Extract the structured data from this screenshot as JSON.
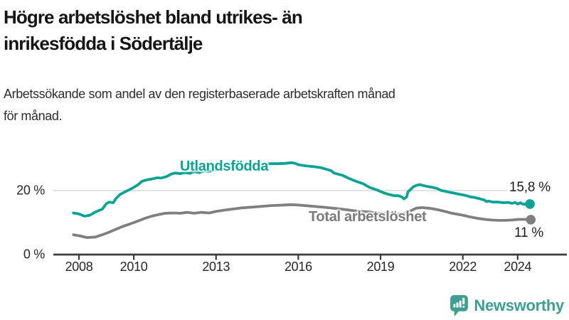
{
  "title": {
    "line1": "Högre arbetslöshet bland utrikes- än",
    "line2": "inrikesfödda i Södertälje"
  },
  "subtitle": {
    "line1": "Arbetssökande som andel av den registerbaserade arbetskraften månad",
    "line2": "för månad."
  },
  "branding": {
    "name": "Newsworthy",
    "icon": "bar-chart-speech-bubble-icon",
    "color": "#3d9f92"
  },
  "chart_data": {
    "type": "line",
    "title": "Högre arbetslöshet bland utrikes- än inrikesfödda i Södertälje",
    "subtitle": "Arbetssökande som andel av den registerbaserade arbetskraften månad för månad.",
    "unit": "%",
    "xlabel": "",
    "ylabel": "",
    "ylim": [
      0,
      33
    ],
    "x_range": [
      2007.8,
      2024.5
    ],
    "grid": "single horizontal gridline at 20 %",
    "legend_position": "inline labels on lines, end values at right",
    "style": {
      "grid_color": "#d9d9d9",
      "axis_color": "#3c3c3c"
    },
    "y_ticks": [
      {
        "value": 0,
        "label": "0 %"
      },
      {
        "value": 20,
        "label": "20 %"
      }
    ],
    "x_ticks": [
      {
        "year": 2008,
        "label": "2008"
      },
      {
        "year": 2010,
        "label": "2010"
      },
      {
        "year": 2013,
        "label": "2013"
      },
      {
        "year": 2016,
        "label": "2016"
      },
      {
        "year": 2019,
        "label": "2019"
      },
      {
        "year": 2022,
        "label": "2022"
      },
      {
        "year": 2024,
        "label": "2024"
      }
    ],
    "series": [
      {
        "id": "utlandsfodda",
        "name": "Utlandsfödda",
        "color": "#0da296",
        "end_label": "15,8 %",
        "end_value": 15.8,
        "points": [
          [
            2007.8,
            13.0
          ],
          [
            2008.0,
            12.7
          ],
          [
            2008.2,
            12.0
          ],
          [
            2008.4,
            12.3
          ],
          [
            2008.6,
            13.3
          ],
          [
            2008.85,
            14.2
          ],
          [
            2009.0,
            15.9
          ],
          [
            2009.1,
            16.4
          ],
          [
            2009.25,
            16.2
          ],
          [
            2009.35,
            17.5
          ],
          [
            2009.5,
            18.8
          ],
          [
            2009.7,
            19.7
          ],
          [
            2009.85,
            20.3
          ],
          [
            2010.0,
            21.0
          ],
          [
            2010.15,
            21.8
          ],
          [
            2010.3,
            22.9
          ],
          [
            2010.5,
            23.4
          ],
          [
            2010.65,
            23.6
          ],
          [
            2010.85,
            24.0
          ],
          [
            2011.0,
            23.9
          ],
          [
            2011.2,
            24.4
          ],
          [
            2011.35,
            25.1
          ],
          [
            2011.5,
            25.5
          ],
          [
            2011.7,
            25.3
          ],
          [
            2011.85,
            25.6
          ],
          [
            2012.05,
            25.4
          ],
          [
            2012.2,
            25.9
          ],
          [
            2012.4,
            25.6
          ],
          [
            2012.55,
            26.2
          ],
          [
            2012.75,
            26.0
          ],
          [
            2012.9,
            26.4
          ],
          [
            2013.15,
            26.7
          ],
          [
            2013.4,
            27.0
          ],
          [
            2013.7,
            27.3
          ],
          [
            2013.95,
            27.7
          ],
          [
            2014.2,
            27.9
          ],
          [
            2014.45,
            28.1
          ],
          [
            2014.7,
            28.2
          ],
          [
            2015.0,
            28.4
          ],
          [
            2015.25,
            28.4
          ],
          [
            2015.5,
            28.5
          ],
          [
            2015.75,
            28.7
          ],
          [
            2015.9,
            28.5
          ],
          [
            2016.0,
            28.1
          ],
          [
            2016.3,
            27.7
          ],
          [
            2016.55,
            27.5
          ],
          [
            2016.8,
            27.2
          ],
          [
            2017.05,
            26.6
          ],
          [
            2017.2,
            26.2
          ],
          [
            2017.3,
            25.5
          ],
          [
            2017.6,
            24.8
          ],
          [
            2017.85,
            23.8
          ],
          [
            2018.1,
            22.9
          ],
          [
            2018.35,
            22.2
          ],
          [
            2018.6,
            21.0
          ],
          [
            2018.9,
            20.1
          ],
          [
            2019.0,
            19.7
          ],
          [
            2019.15,
            19.2
          ],
          [
            2019.3,
            18.8
          ],
          [
            2019.5,
            18.4
          ],
          [
            2019.65,
            18.4
          ],
          [
            2019.8,
            17.9
          ],
          [
            2019.85,
            17.4
          ],
          [
            2019.95,
            18.0
          ],
          [
            2020.0,
            19.6
          ],
          [
            2020.1,
            20.4
          ],
          [
            2020.2,
            21.2
          ],
          [
            2020.3,
            21.6
          ],
          [
            2020.4,
            21.8
          ],
          [
            2020.45,
            21.8
          ],
          [
            2020.55,
            21.6
          ],
          [
            2020.6,
            21.5
          ],
          [
            2020.7,
            21.3
          ],
          [
            2020.9,
            21.0
          ],
          [
            2021.05,
            20.7
          ],
          [
            2021.2,
            20.1
          ],
          [
            2021.4,
            19.7
          ],
          [
            2021.55,
            19.4
          ],
          [
            2021.75,
            19.1
          ],
          [
            2021.9,
            18.8
          ],
          [
            2022.1,
            18.5
          ],
          [
            2022.25,
            18.1
          ],
          [
            2022.45,
            17.8
          ],
          [
            2022.6,
            17.5
          ],
          [
            2022.8,
            17.0
          ],
          [
            2022.85,
            16.6
          ],
          [
            2022.95,
            16.7
          ],
          [
            2023.1,
            16.4
          ],
          [
            2023.3,
            16.4
          ],
          [
            2023.5,
            16.2
          ],
          [
            2023.65,
            16.3
          ],
          [
            2023.8,
            16.0
          ],
          [
            2023.9,
            16.3
          ],
          [
            2024.0,
            15.8
          ],
          [
            2024.1,
            16.2
          ],
          [
            2024.15,
            15.9
          ],
          [
            2024.25,
            15.7
          ],
          [
            2024.35,
            15.9
          ],
          [
            2024.45,
            15.8
          ]
        ]
      },
      {
        "id": "total",
        "name": "Total arbetslöshet",
        "color": "#7f7f7f",
        "end_label": "11 %",
        "end_value": 11,
        "points": [
          [
            2007.8,
            6.2
          ],
          [
            2008.05,
            5.8
          ],
          [
            2008.3,
            5.3
          ],
          [
            2008.6,
            5.5
          ],
          [
            2008.85,
            6.2
          ],
          [
            2009.1,
            7.0
          ],
          [
            2009.35,
            7.9
          ],
          [
            2009.6,
            8.8
          ],
          [
            2009.9,
            9.7
          ],
          [
            2010.15,
            10.5
          ],
          [
            2010.4,
            11.3
          ],
          [
            2010.65,
            12.0
          ],
          [
            2010.9,
            12.5
          ],
          [
            2011.15,
            12.9
          ],
          [
            2011.45,
            13.0
          ],
          [
            2011.7,
            12.9
          ],
          [
            2011.95,
            13.2
          ],
          [
            2012.2,
            12.9
          ],
          [
            2012.45,
            13.2
          ],
          [
            2012.75,
            13.0
          ],
          [
            2013.0,
            13.5
          ],
          [
            2013.4,
            14.0
          ],
          [
            2013.95,
            14.6
          ],
          [
            2014.45,
            14.9
          ],
          [
            2015.0,
            15.3
          ],
          [
            2015.5,
            15.5
          ],
          [
            2015.75,
            15.6
          ],
          [
            2016.0,
            15.5
          ],
          [
            2016.55,
            15.1
          ],
          [
            2017.05,
            14.7
          ],
          [
            2017.6,
            14.2
          ],
          [
            2018.1,
            13.6
          ],
          [
            2018.6,
            13.3
          ],
          [
            2018.95,
            12.9
          ],
          [
            2019.4,
            12.8
          ],
          [
            2019.65,
            12.7
          ],
          [
            2019.85,
            12.8
          ],
          [
            2020.05,
            13.5
          ],
          [
            2020.3,
            14.5
          ],
          [
            2020.5,
            14.7
          ],
          [
            2020.85,
            14.4
          ],
          [
            2021.1,
            14.0
          ],
          [
            2021.35,
            13.5
          ],
          [
            2021.6,
            12.9
          ],
          [
            2021.75,
            12.7
          ],
          [
            2022.0,
            12.3
          ],
          [
            2022.25,
            11.8
          ],
          [
            2022.5,
            11.4
          ],
          [
            2022.8,
            11.0
          ],
          [
            2023.05,
            10.8
          ],
          [
            2023.3,
            10.7
          ],
          [
            2023.55,
            10.7
          ],
          [
            2023.8,
            10.8
          ],
          [
            2024.05,
            11.0
          ],
          [
            2024.35,
            11.0
          ],
          [
            2024.48,
            10.9
          ]
        ]
      }
    ]
  }
}
